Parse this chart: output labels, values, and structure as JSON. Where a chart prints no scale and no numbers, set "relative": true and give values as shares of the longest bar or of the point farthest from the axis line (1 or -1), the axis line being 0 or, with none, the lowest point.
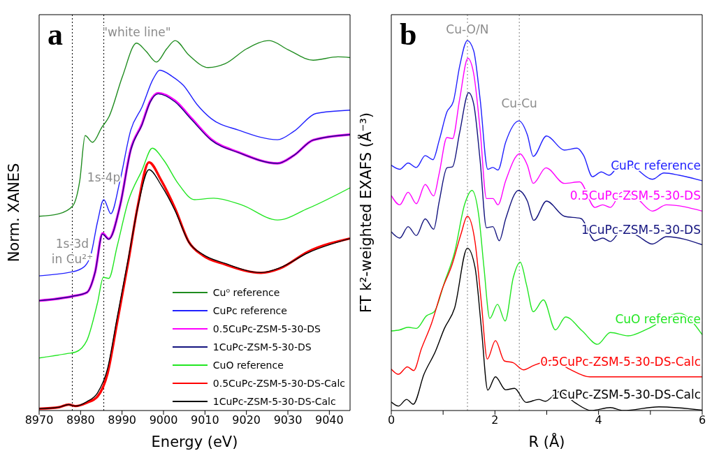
{
  "chart_data": [
    {
      "type": "line",
      "title": "a",
      "xlabel": "Energy (eV)",
      "ylabel": "Norm. XANES",
      "relative": true,
      "legend": "bottom right",
      "xlim": [
        8970,
        9045
      ],
      "xticks": [
        8970,
        8980,
        8990,
        9000,
        9010,
        9020,
        9030,
        9040
      ],
      "ref_lines": [
        {
          "axis": "x",
          "value": 8978,
          "color": "#000000",
          "line_style": "dotted"
        },
        {
          "axis": "x",
          "value": 8985.6,
          "color": "#000000",
          "line_style": "dotted"
        }
      ],
      "annotations": [
        {
          "text": "\"white line\"",
          "x": 8993.5,
          "y": 0.993
        },
        {
          "text": "1s-4p",
          "x": 8985.6,
          "y": 0.6
        },
        {
          "text": "1s-3d\nin Cu²⁺",
          "x": 8978,
          "y": 0.38
        }
      ],
      "series": [
        {
          "name": "Cu⁰ reference",
          "color": "#1f8c1f",
          "x": [
            8970,
            8974.8,
            8978.1,
            8979.8,
            8981.1,
            8982.9,
            8985.1,
            8986.8,
            8990.1,
            8993.5,
            8995.8,
            8998.3,
            9000.8,
            9002.8,
            9006.1,
            9010.8,
            9014.8,
            9020.1,
            9025.5,
            9030.1,
            9036.1,
            9042.1,
            9045
          ],
          "values": [
            0.525,
            0.532,
            0.553,
            0.621,
            0.743,
            0.725,
            0.765,
            0.793,
            0.903,
            0.993,
            0.971,
            0.942,
            0.978,
            1.0,
            0.961,
            0.927,
            0.937,
            0.978,
            1.0,
            0.975,
            0.947,
            0.956,
            0.954
          ]
        },
        {
          "name": "CuPc reference",
          "color": "#2020ff",
          "x": [
            8970,
            8977.5,
            8978.8,
            8981.1,
            8982.5,
            8984.1,
            8985.6,
            8987.3,
            8989.5,
            8992.1,
            8994.8,
            8997.5,
            8999.1,
            9002.1,
            9004.8,
            9008.1,
            9011.5,
            9018.1,
            9027.5,
            9031.5,
            9036.8,
            9045
          ],
          "values": [
            0.364,
            0.374,
            0.377,
            0.391,
            0.422,
            0.511,
            0.57,
            0.532,
            0.621,
            0.758,
            0.82,
            0.896,
            0.92,
            0.903,
            0.879,
            0.827,
            0.789,
            0.758,
            0.732,
            0.755,
            0.803,
            0.812
          ]
        },
        {
          "name": "0.5CuPc-ZSM-5-30-DS",
          "color": "#ff00ff",
          "x": [
            8970,
            8978.1,
            8981.5,
            8983.5,
            8985.3,
            8986.8,
            8989.5,
            8992.1,
            8994.8,
            8996.8,
            8998.7,
            9002.8,
            9006.8,
            9011.5,
            9018.1,
            9027.5,
            9031.5,
            9036.1,
            9045
          ],
          "values": [
            0.297,
            0.309,
            0.319,
            0.374,
            0.479,
            0.464,
            0.553,
            0.706,
            0.774,
            0.836,
            0.858,
            0.837,
            0.789,
            0.733,
            0.698,
            0.668,
            0.69,
            0.731,
            0.746
          ]
        },
        {
          "name": "1CuPc-ZSM-5-30-DS",
          "color": "#14147f",
          "x": [
            8970,
            8978.1,
            8981.5,
            8983.5,
            8985.3,
            8986.8,
            8989.5,
            8992.1,
            8994.8,
            8996.8,
            8998.7,
            9002.8,
            9006.8,
            9011.5,
            9018.1,
            9027.5,
            9031.5,
            9036.1,
            9045
          ],
          "values": [
            0.297,
            0.309,
            0.319,
            0.374,
            0.477,
            0.463,
            0.553,
            0.704,
            0.772,
            0.834,
            0.856,
            0.834,
            0.786,
            0.731,
            0.697,
            0.668,
            0.69,
            0.731,
            0.746
          ]
        },
        {
          "name": "CuO reference",
          "color": "#22e622",
          "x": [
            8970,
            8976.8,
            8978.8,
            8981.5,
            8984.1,
            8985.5,
            8986.8,
            8988.8,
            8991.5,
            8994.8,
            8997.3,
            9000.1,
            9003.5,
            9007.5,
            9012.1,
            9018.8,
            9027.5,
            9034.8,
            9045
          ],
          "values": [
            0.142,
            0.154,
            0.158,
            0.189,
            0.292,
            0.36,
            0.357,
            0.443,
            0.566,
            0.649,
            0.709,
            0.676,
            0.614,
            0.57,
            0.574,
            0.556,
            0.515,
            0.546,
            0.602
          ]
        },
        {
          "name": "0.5CuPc-ZSM-5-30-DS-Calc",
          "color": "#ff0000",
          "x": [
            8970,
            8974.8,
            8977.1,
            8978.8,
            8981.5,
            8984.1,
            8986.5,
            8988.8,
            8991.5,
            8993.8,
            8996.5,
            8999.5,
            9002.8,
            9006.1,
            9009.5,
            9014.8,
            9023.5,
            9028.1,
            9034.8,
            9045
          ],
          "values": [
            0.005,
            0.009,
            0.016,
            0.012,
            0.021,
            0.038,
            0.1,
            0.237,
            0.402,
            0.553,
            0.671,
            0.621,
            0.546,
            0.456,
            0.419,
            0.395,
            0.372,
            0.384,
            0.429,
            0.465
          ]
        },
        {
          "name": "1CuPc-ZSM-5-30-DS-Calc",
          "color": "#000000",
          "x": [
            8970,
            8974.8,
            8977.1,
            8978.8,
            8981.5,
            8984.1,
            8986.5,
            8988.8,
            8991.5,
            8993.8,
            8996.5,
            8999.5,
            9002.8,
            9006.1,
            9009.5,
            9014.8,
            9023.5,
            9028.1,
            9034.8,
            9045
          ],
          "values": [
            0.005,
            0.009,
            0.016,
            0.012,
            0.024,
            0.048,
            0.113,
            0.25,
            0.41,
            0.55,
            0.651,
            0.608,
            0.54,
            0.455,
            0.422,
            0.398,
            0.373,
            0.386,
            0.426,
            0.465
          ]
        }
      ]
    },
    {
      "type": "line",
      "title": "b",
      "xlabel": "R (Å)",
      "ylabel": "FT k²-weighted EXAFS (Å⁻³)",
      "relative": true,
      "xlim": [
        0,
        6
      ],
      "xticks": [
        0,
        {
          "value": 1,
          "label": null
        },
        2,
        {
          "value": 3,
          "label": null
        },
        4,
        {
          "value": 5,
          "label": null
        },
        6
      ],
      "ref_lines": [
        {
          "axis": "x",
          "value": 1.47,
          "color": "#808080",
          "line_style": "dotted"
        },
        {
          "axis": "x",
          "value": 2.47,
          "color": "#808080",
          "line_style": "dotted"
        }
      ],
      "annotations": [
        {
          "text": "Cu-O/N",
          "x": 1.468,
          "y": 1.0
        },
        {
          "text": "Cu-Cu",
          "x": 2.47,
          "y": 0.8
        }
      ],
      "series": [
        {
          "name": "CuPc reference",
          "color": "#2020ff",
          "x": [
            0,
            0.163,
            0.325,
            0.483,
            0.655,
            0.803,
            0.926,
            1.074,
            1.197,
            1.32,
            1.468,
            1.591,
            1.714,
            1.862,
            1.961,
            2.059,
            2.207,
            2.463,
            2.626,
            2.739,
            2.995,
            3.34,
            3.586,
            3.71,
            3.882,
            4.054,
            4.202,
            4.448,
            4.695,
            5.039,
            5.261,
            5.557,
            6
          ],
          "values": [
            0.663,
            0.652,
            0.669,
            0.657,
            0.689,
            0.678,
            0.731,
            0.807,
            0.835,
            0.931,
            1.0,
            0.972,
            0.842,
            0.652,
            0.657,
            0.65,
            0.725,
            0.783,
            0.745,
            0.687,
            0.742,
            0.704,
            0.709,
            0.69,
            0.632,
            0.645,
            0.636,
            0.669,
            0.656,
            0.625,
            0.642,
            0.636,
            0.621
          ]
        },
        {
          "name": "0.5CuPc-ZSM-5-30-DS",
          "color": "#ff00ff",
          "x": [
            0,
            0.163,
            0.325,
            0.483,
            0.655,
            0.818,
            0.926,
            1.074,
            1.182,
            1.32,
            1.478,
            1.591,
            1.714,
            1.837,
            1.961,
            2.059,
            2.207,
            2.478,
            2.626,
            2.739,
            2.985,
            3.34,
            3.635,
            3.931,
            4.079,
            4.227,
            4.448,
            4.744,
            5.039,
            5.31,
            6
          ],
          "values": [
            0.581,
            0.556,
            0.59,
            0.559,
            0.611,
            0.58,
            0.642,
            0.738,
            0.735,
            0.842,
            0.952,
            0.91,
            0.759,
            0.573,
            0.573,
            0.556,
            0.621,
            0.694,
            0.663,
            0.614,
            0.656,
            0.614,
            0.618,
            0.549,
            0.556,
            0.549,
            0.59,
            0.573,
            0.539,
            0.556,
            0.539
          ]
        },
        {
          "name": "1CuPc-ZSM-5-30-DS",
          "color": "#14147f",
          "x": [
            0,
            0.163,
            0.325,
            0.483,
            0.655,
            0.818,
            0.926,
            1.074,
            1.182,
            1.32,
            1.493,
            1.591,
            1.714,
            1.837,
            1.961,
            2.084,
            2.207,
            2.453,
            2.626,
            2.749,
            2.995,
            3.34,
            3.66,
            3.931,
            4.079,
            4.227,
            4.448,
            4.744,
            5.039,
            5.31,
            6
          ],
          "values": [
            0.483,
            0.466,
            0.497,
            0.473,
            0.518,
            0.49,
            0.566,
            0.656,
            0.659,
            0.752,
            0.859,
            0.828,
            0.676,
            0.494,
            0.497,
            0.459,
            0.518,
            0.595,
            0.566,
            0.514,
            0.566,
            0.525,
            0.519,
            0.459,
            0.466,
            0.457,
            0.487,
            0.473,
            0.45,
            0.47,
            0.448
          ]
        },
        {
          "name": "CuO reference",
          "color": "#22e622",
          "x": [
            0,
            0.163,
            0.325,
            0.483,
            0.68,
            0.828,
            1.025,
            1.222,
            1.419,
            1.557,
            1.69,
            1.788,
            1.901,
            2.049,
            2.197,
            2.355,
            2.488,
            2.611,
            2.739,
            2.936,
            3.167,
            3.365,
            3.685,
            3.98,
            4.227,
            4.571,
            4.966,
            5.557,
            6
          ],
          "values": [
            0.215,
            0.218,
            0.225,
            0.222,
            0.256,
            0.267,
            0.346,
            0.428,
            0.559,
            0.595,
            0.525,
            0.387,
            0.249,
            0.287,
            0.242,
            0.36,
            0.401,
            0.339,
            0.267,
            0.299,
            0.218,
            0.253,
            0.215,
            0.179,
            0.211,
            0.202,
            0.222,
            0.263,
            0.205
          ]
        },
        {
          "name": "0.5CuPc-ZSM-5-30-DS-Calc",
          "color": "#ff0000",
          "x": [
            0,
            0.138,
            0.31,
            0.433,
            0.581,
            0.778,
            0.975,
            1.172,
            1.345,
            1.468,
            1.616,
            1.739,
            1.852,
            2.01,
            2.182,
            2.355,
            2.552,
            2.749,
            3.118,
            3.438,
            3.833,
            4.818,
            6
          ],
          "values": [
            0.112,
            0.098,
            0.118,
            0.108,
            0.167,
            0.236,
            0.325,
            0.394,
            0.477,
            0.525,
            0.456,
            0.29,
            0.139,
            0.189,
            0.134,
            0.129,
            0.11,
            0.122,
            0.136,
            0.112,
            0.091,
            0.091,
            0.091
          ]
        },
        {
          "name": "1CuPc-ZSM-5-30-DS-Calc",
          "color": "#000000",
          "x": [
            0,
            0.138,
            0.296,
            0.424,
            0.631,
            0.852,
            1.025,
            1.222,
            1.468,
            1.616,
            1.739,
            1.862,
            2.01,
            2.207,
            2.379,
            2.601,
            2.847,
            2.97,
            3.241,
            3.537,
            3.857,
            4.227,
            4.473,
            5.163,
            6
          ],
          "values": [
            0.023,
            0.012,
            0.03,
            0.017,
            0.098,
            0.16,
            0.222,
            0.277,
            0.439,
            0.387,
            0.222,
            0.055,
            0.091,
            0.056,
            0.06,
            0.022,
            0.03,
            0.025,
            0.051,
            0.022,
            0,
            0.008,
            0,
            0.01,
            0.001
          ]
        }
      ]
    }
  ]
}
